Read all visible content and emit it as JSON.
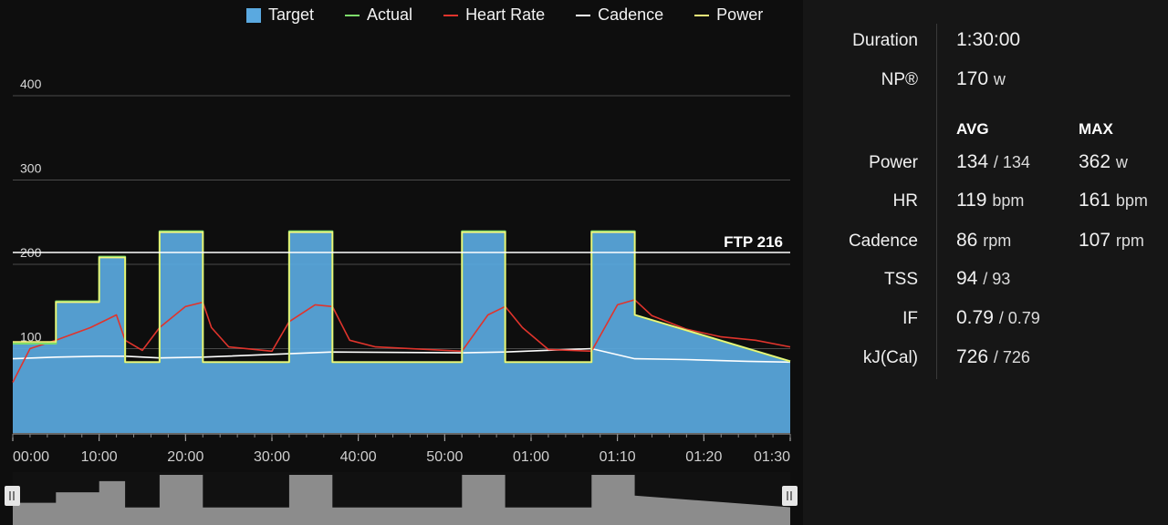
{
  "legend": [
    {
      "label": "Target",
      "color": "#5aa9e0",
      "kind": "box"
    },
    {
      "label": "Actual",
      "color": "#7ddc6b",
      "kind": "line"
    },
    {
      "label": "Heart Rate",
      "color": "#e0342c",
      "kind": "line"
    },
    {
      "label": "Cadence",
      "color": "#ffffff",
      "kind": "line"
    },
    {
      "label": "Power",
      "color": "#f4f27a",
      "kind": "line"
    }
  ],
  "ftp_label": "FTP 216",
  "chart_data": {
    "type": "area",
    "ylim": [
      0,
      420
    ],
    "y_ticks": [
      "100",
      "200",
      "300",
      "400"
    ],
    "x_tick_labels": [
      "00:00",
      "10:00",
      "20:00",
      "30:00",
      "40:00",
      "50:00",
      "01:00",
      "01:10",
      "01:20",
      "01:30"
    ],
    "xlim_minutes": [
      0,
      90
    ],
    "ftp_watts": 216,
    "series": [
      {
        "name": "Target",
        "x": [
          0,
          5,
          5,
          10,
          10,
          13,
          13,
          17,
          17,
          22,
          22,
          32,
          32,
          37,
          37,
          52,
          52,
          57,
          57,
          67,
          67,
          72,
          72,
          90
        ],
        "y": [
          106,
          106,
          156,
          156,
          209,
          209,
          84,
          84,
          239,
          239,
          84,
          84,
          239,
          239,
          84,
          84,
          239,
          239,
          84,
          84,
          239,
          239,
          140,
          85
        ]
      },
      {
        "name": "Actual",
        "x": [
          0,
          5,
          5,
          10,
          10,
          13,
          13,
          17,
          17,
          22,
          22,
          32,
          32,
          37,
          37,
          52,
          52,
          57,
          57,
          67,
          67,
          72,
          72,
          90
        ],
        "y": [
          106,
          106,
          156,
          156,
          209,
          209,
          84,
          84,
          239,
          239,
          84,
          84,
          239,
          239,
          84,
          84,
          239,
          239,
          84,
          84,
          239,
          239,
          140,
          85
        ]
      },
      {
        "name": "Heart Rate",
        "x": [
          0,
          2,
          5,
          9,
          12,
          13,
          15,
          17,
          20,
          22,
          23,
          25,
          30,
          32,
          35,
          37,
          39,
          42,
          52,
          55,
          57,
          59,
          62,
          67,
          70,
          72,
          74,
          78,
          82,
          86,
          90
        ],
        "y": [
          60,
          100,
          110,
          125,
          140,
          110,
          98,
          125,
          150,
          155,
          125,
          102,
          97,
          132,
          152,
          150,
          110,
          102,
          97,
          140,
          150,
          125,
          99,
          97,
          152,
          158,
          139,
          123,
          114,
          110,
          102
        ]
      },
      {
        "name": "Cadence",
        "x": [
          0,
          5,
          10,
          13,
          17,
          22,
          32,
          37,
          52,
          57,
          67,
          72,
          78,
          85,
          90
        ],
        "y": [
          88,
          90,
          91,
          91,
          89,
          90,
          94,
          96,
          95,
          96,
          100,
          88,
          87,
          85,
          84
        ]
      },
      {
        "name": "Power",
        "x": [
          0,
          5,
          5,
          10,
          10,
          13,
          13,
          17,
          17,
          22,
          22,
          32,
          32,
          37,
          37,
          52,
          52,
          57,
          57,
          67,
          67,
          72,
          72,
          90
        ],
        "y": [
          108,
          108,
          155,
          155,
          208,
          208,
          84,
          84,
          238,
          238,
          84,
          84,
          238,
          238,
          84,
          84,
          238,
          238,
          84,
          84,
          238,
          238,
          140,
          85
        ]
      }
    ]
  },
  "stats": {
    "duration_label": "Duration",
    "duration_value": "1:30:00",
    "np_label": "NP®",
    "np_value": "170",
    "np_unit": "w",
    "avg_head": "AVG",
    "max_head": "MAX",
    "rows": [
      {
        "label": "Power",
        "avg": "134",
        "avg_sub": "/ 134",
        "max": "362",
        "max_unit": "w"
      },
      {
        "label": "HR",
        "avg": "119",
        "avg_sub": "bpm",
        "max": "161",
        "max_unit": "bpm"
      },
      {
        "label": "Cadence",
        "avg": "86",
        "avg_sub": "rpm",
        "max": "107",
        "max_unit": "rpm"
      },
      {
        "label": "TSS",
        "avg": "94",
        "avg_sub": "/ 93",
        "max": "",
        "max_unit": ""
      },
      {
        "label": "IF",
        "avg": "0.79",
        "avg_sub": "/ 0.79",
        "max": "",
        "max_unit": ""
      },
      {
        "label": "kJ(Cal)",
        "avg": "726",
        "avg_sub": "/ 726",
        "max": "",
        "max_unit": ""
      }
    ]
  }
}
